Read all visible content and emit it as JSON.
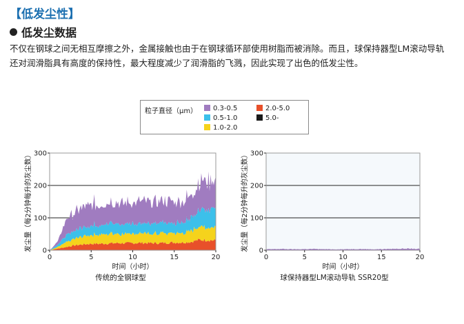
{
  "header": {
    "title": "【低发尘性】",
    "subtitle": "低发尘数据",
    "paragraph": "不仅在钢球之间无相互摩擦之外，金属接触也由于在钢球循环部使用树脂而被消除。而且，球保持器型LM滚动导轨还对润滑脂具有高度的保持性，最大程度减少了润滑脂的飞溅，因此实现了出色的低发尘性。"
  },
  "legend": {
    "title": "粒子直径（μm）",
    "items": [
      {
        "label": "0.3-0.5",
        "color": "#a07cc0"
      },
      {
        "label": "2.0-5.0",
        "color": "#e8502a"
      },
      {
        "label": "0.5-1.0",
        "color": "#3cc0ea"
      },
      {
        "label": "5.0-",
        "color": "#1a1a1a"
      },
      {
        "label": "1.0-2.0",
        "color": "#f5d31c"
      }
    ]
  },
  "chart_data": [
    {
      "type": "area",
      "caption": "传统的全钢球型",
      "xlabel": "时间（小时）",
      "ylabel": "发尘量（每2分钟每升的灰尘数）",
      "xlim": [
        0,
        20
      ],
      "ylim": [
        0,
        300
      ],
      "xticks": [
        0,
        5,
        10,
        15,
        20
      ],
      "yticks": [
        0,
        100,
        200,
        300
      ],
      "grid": "horizontal",
      "stacked": true,
      "x": [
        0,
        1,
        2,
        3,
        4,
        5,
        6,
        7,
        8,
        9,
        10,
        11,
        12,
        13,
        14,
        15,
        16,
        17,
        18,
        19,
        20
      ],
      "series": [
        {
          "name": "2.0-5.0",
          "values": [
            0,
            5,
            10,
            15,
            18,
            20,
            20,
            21,
            22,
            22,
            22,
            23,
            22,
            22,
            23,
            24,
            24,
            26,
            32,
            32,
            30
          ]
        },
        {
          "name": "1.0-2.0",
          "values": [
            0,
            5,
            15,
            20,
            25,
            28,
            28,
            30,
            30,
            28,
            30,
            30,
            28,
            30,
            30,
            30,
            30,
            35,
            40,
            42,
            40
          ]
        },
        {
          "name": "0.5-1.0",
          "values": [
            0,
            8,
            20,
            25,
            28,
            30,
            30,
            32,
            32,
            30,
            32,
            32,
            30,
            32,
            32,
            32,
            32,
            40,
            55,
            60,
            55
          ]
        },
        {
          "name": "0.3-0.5",
          "values": [
            0,
            10,
            50,
            55,
            62,
            65,
            65,
            66,
            66,
            65,
            66,
            68,
            65,
            66,
            68,
            68,
            66,
            70,
            88,
            90,
            85
          ]
        }
      ]
    },
    {
      "type": "area",
      "caption": "球保持器型LM滚动导轨 SSR20型",
      "xlabel": "时间（小时）",
      "ylabel": "发尘量（每2分钟每升的灰尘数）",
      "xlim": [
        0,
        20
      ],
      "ylim": [
        0,
        300
      ],
      "xticks": [
        0,
        5,
        10,
        15,
        20
      ],
      "yticks": [
        0,
        100,
        200,
        300
      ],
      "grid": "horizontal",
      "stacked": true,
      "x": [
        0,
        2,
        4,
        6,
        8,
        10,
        12,
        14,
        16,
        18,
        20
      ],
      "series": [
        {
          "name": "0.3-0.5",
          "values": [
            3,
            4,
            3,
            4,
            3,
            3,
            4,
            3,
            4,
            5,
            4
          ]
        }
      ]
    }
  ]
}
